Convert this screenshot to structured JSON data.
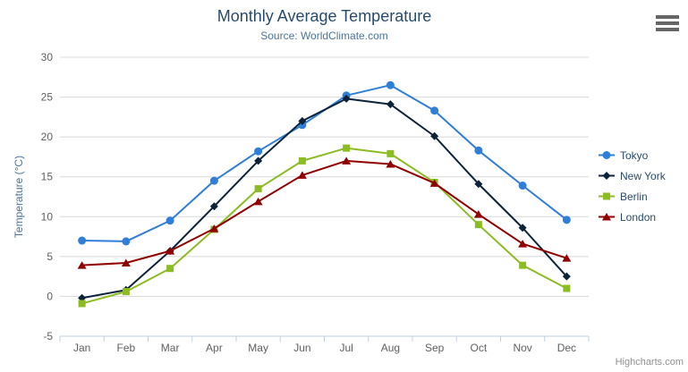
{
  "chart": {
    "credit": "Highcharts.com"
  },
  "icons": {
    "export_menu": "hamburger-menu-icon",
    "legend_markers": [
      "circle-icon",
      "diamond-icon",
      "square-icon",
      "triangle-icon"
    ]
  },
  "colors": {
    "background": "#ffffff",
    "title": "#274b6d",
    "subtitle": "#4d759e",
    "axis_title": "#4d759e",
    "tick_label": "#606060",
    "grid_line": "#d8d8d8",
    "axis_line": "#c0d0e0",
    "legend_text": "#274b6d",
    "credit_text": "#909090",
    "menu_icon": "#666666"
  },
  "chart_data": {
    "type": "line",
    "title": "Monthly Average Temperature",
    "subtitle": "Source: WorldClimate.com",
    "xlabel": "",
    "ylabel": "Temperature (°C)",
    "ylim": [
      -5,
      30
    ],
    "ytick_step": 5,
    "yticks": [
      -5,
      0,
      5,
      10,
      15,
      20,
      25,
      30
    ],
    "grid": true,
    "legend_position": "right",
    "categories": [
      "Jan",
      "Feb",
      "Mar",
      "Apr",
      "May",
      "Jun",
      "Jul",
      "Aug",
      "Sep",
      "Oct",
      "Nov",
      "Dec"
    ],
    "series": [
      {
        "name": "Tokyo",
        "color": "#2f7ed8",
        "marker": "circle",
        "values": [
          7.0,
          6.9,
          9.5,
          14.5,
          18.2,
          21.5,
          25.2,
          26.5,
          23.3,
          18.3,
          13.9,
          9.6
        ]
      },
      {
        "name": "New York",
        "color": "#0d233a",
        "marker": "diamond",
        "values": [
          -0.2,
          0.8,
          5.7,
          11.3,
          17.0,
          22.0,
          24.8,
          24.1,
          20.1,
          14.1,
          8.6,
          2.5
        ]
      },
      {
        "name": "Berlin",
        "color": "#8bbc21",
        "marker": "square",
        "values": [
          -0.9,
          0.6,
          3.5,
          8.4,
          13.5,
          17.0,
          18.6,
          17.9,
          14.3,
          9.0,
          3.9,
          1.0
        ]
      },
      {
        "name": "London",
        "color": "#910000",
        "marker": "triangle",
        "values": [
          3.9,
          4.2,
          5.7,
          8.5,
          11.9,
          15.2,
          17.0,
          16.6,
          14.2,
          10.3,
          6.6,
          4.8
        ]
      }
    ]
  }
}
